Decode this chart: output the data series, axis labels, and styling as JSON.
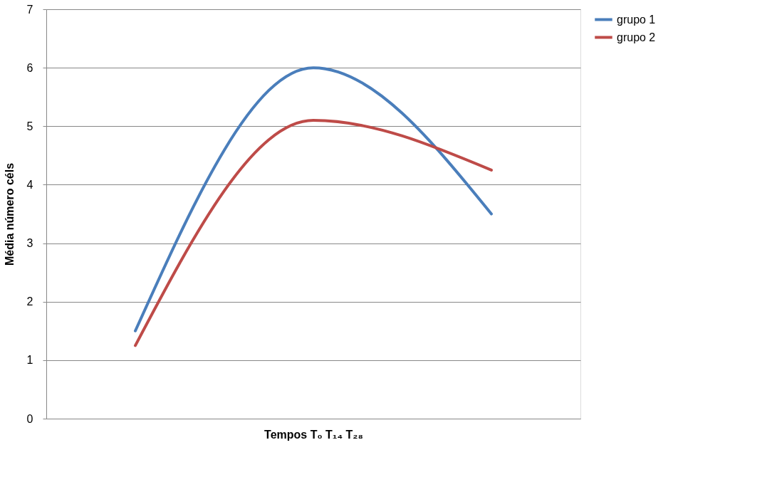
{
  "chart_data": {
    "type": "line",
    "xlabel": "Tempos T₀ T₁₄  T₂₈",
    "ylabel": "Média número céls",
    "categories": [
      null,
      null,
      null
    ],
    "series": [
      {
        "name": "grupo 1",
        "color": "#4a7ebb",
        "values": [
          1.5,
          6.0,
          3.5
        ]
      },
      {
        "name": "grupo 2",
        "color": "#be4b48",
        "values": [
          1.25,
          5.1,
          4.25
        ]
      }
    ],
    "ylim": [
      0,
      7
    ],
    "yticks": [
      0,
      1,
      2,
      3,
      4,
      5,
      6,
      7
    ],
    "grid": "y",
    "legend": "right",
    "marker": "none",
    "line_style": "solid"
  }
}
